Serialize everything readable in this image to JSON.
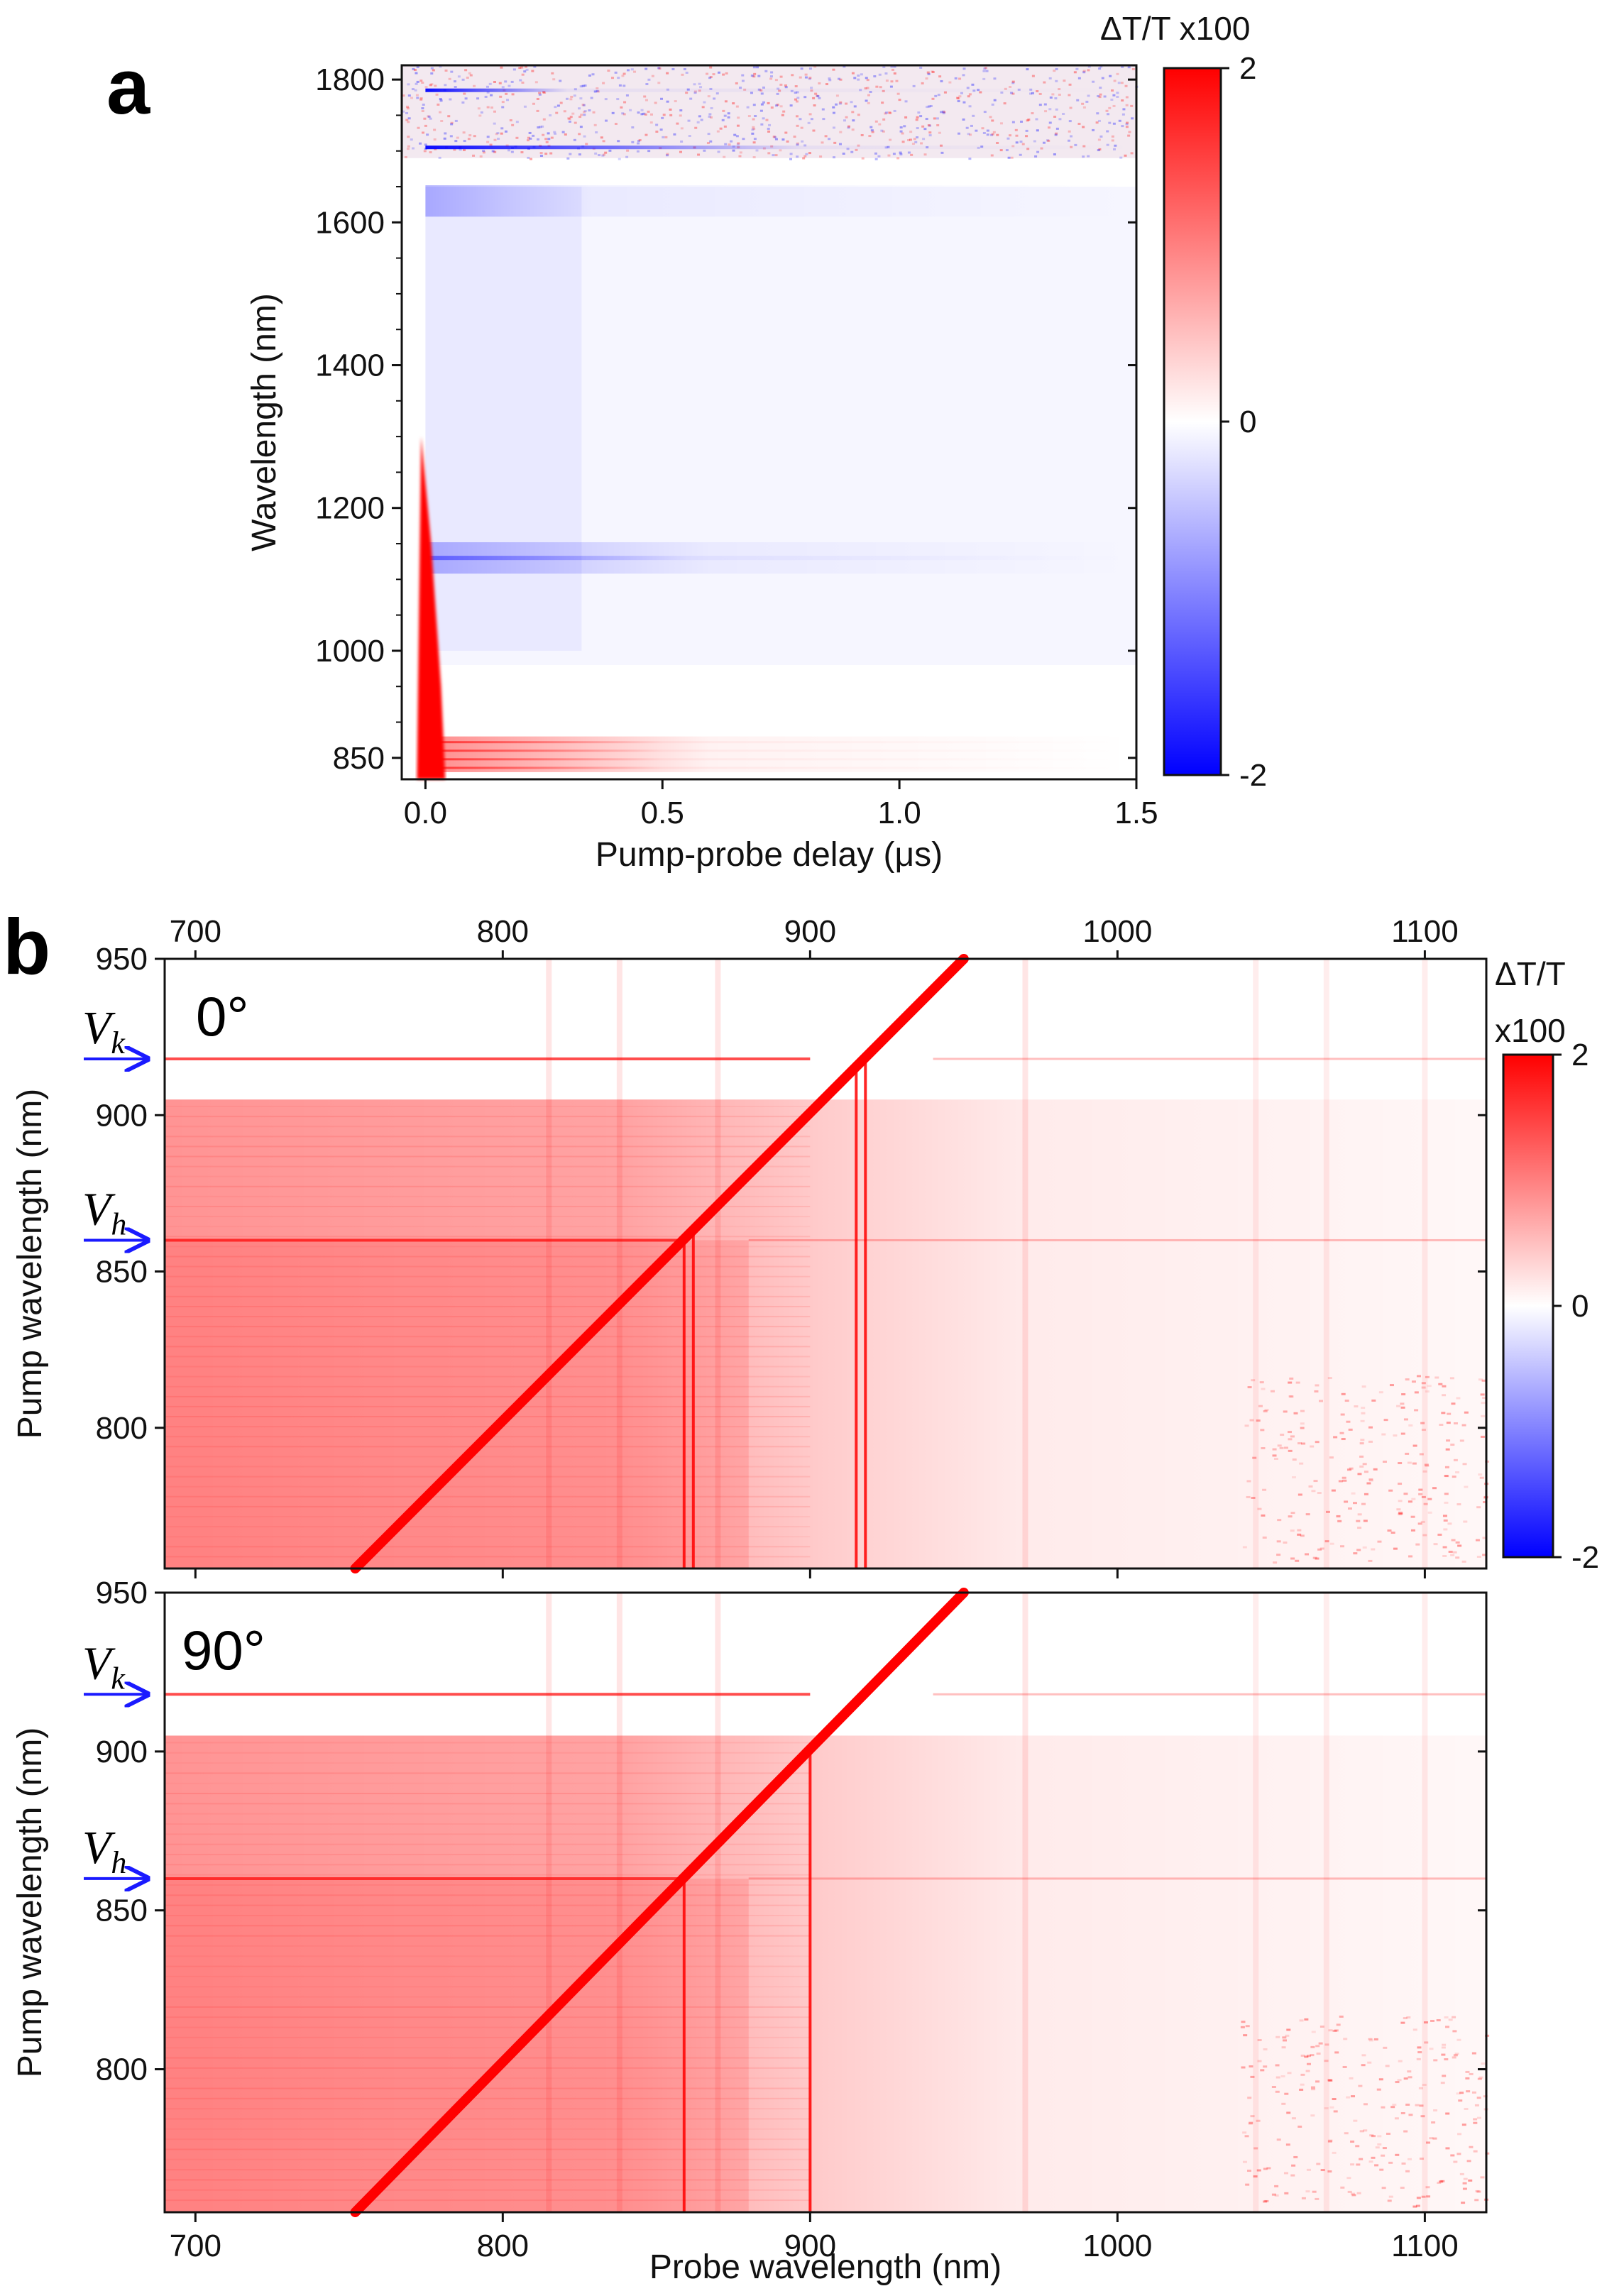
{
  "colors": {
    "positive": "#ff0000",
    "negative": "#0000ff",
    "zero": "#ffffff",
    "arrow": "#1a1aff",
    "axis": "#111111"
  },
  "chart_data": [
    {
      "panel": "a",
      "type": "heatmap",
      "xlabel": "Pump-probe delay (μs)",
      "ylabel": "Wavelength (nm)",
      "xlim": [
        -0.05,
        1.5
      ],
      "ylim": [
        820,
        1820
      ],
      "xticks": [
        0.0,
        0.5,
        1.0,
        1.5
      ],
      "xtick_labels": [
        "0.0",
        "0.5",
        "1.0",
        "1.5"
      ],
      "yticks": [
        850,
        1000,
        1200,
        1400,
        1600,
        1800
      ],
      "ytick_labels": [
        "850",
        "1000",
        "1200",
        "1400",
        "1600",
        "1800"
      ],
      "colorbar": {
        "title": "ΔT/T x100",
        "min": -2,
        "max": 2,
        "tick_labels": [
          "2",
          "0",
          "-2"
        ]
      },
      "features": [
        {
          "kind": "negative_line",
          "wavelength_nm": 1785,
          "decay_us": 0.3
        },
        {
          "kind": "negative_line",
          "wavelength_nm": 1705,
          "decay_us": 0.8
        },
        {
          "kind": "noise_band",
          "from_nm": 1690,
          "to_nm": 1820
        },
        {
          "kind": "negative_band",
          "wavelength_nm": 1630,
          "decay_us": 0.35
        },
        {
          "kind": "negative_band",
          "wavelength_nm": 1130,
          "decay_us": 0.6
        },
        {
          "kind": "positive_edge",
          "from_nm": 820,
          "to_nm": 1300
        },
        {
          "kind": "positive_band",
          "from_nm": 830,
          "to_nm": 880,
          "decay_us": 0.6
        }
      ]
    },
    {
      "panel": "b",
      "type": "heatmap",
      "label": "0°",
      "xlabel": "",
      "ylabel": "Pump wavelength (nm)",
      "xlim": [
        690,
        1120
      ],
      "ylim": [
        755,
        950
      ],
      "xticks": [
        700,
        800,
        900,
        1000,
        1100
      ],
      "xtick_labels": [
        "700",
        "800",
        "900",
        "1000",
        "1100"
      ],
      "yticks": [
        800,
        850,
        900,
        950
      ],
      "ytick_labels": [
        "800",
        "850",
        "900",
        "950"
      ],
      "colorbar": {
        "title_line1": "ΔT/T",
        "title_line2": "x100",
        "min": -2,
        "max": 2,
        "tick_labels": [
          "2",
          "0",
          "-2"
        ]
      },
      "diagonal": {
        "from": [
          752,
          755
        ],
        "to": [
          950,
          950
        ]
      },
      "markers": [
        {
          "name": "Vk",
          "letter": "V",
          "sub": "k",
          "pump_nm": 918
        },
        {
          "name": "Vh",
          "letter": "V",
          "sub": "h",
          "pump_nm": 860
        }
      ],
      "vertical_lines_nm": [
        859,
        862,
        915,
        918
      ],
      "bright_horizontal_nm": [
        918,
        860
      ]
    },
    {
      "panel": "b",
      "type": "heatmap",
      "label": "90°",
      "xlabel": "Probe wavelength (nm)",
      "ylabel": "Pump wavelength (nm)",
      "xlim": [
        690,
        1120
      ],
      "ylim": [
        755,
        950
      ],
      "xticks": [
        700,
        800,
        900,
        1000,
        1100
      ],
      "xtick_labels": [
        "700",
        "800",
        "900",
        "1000",
        "1100"
      ],
      "yticks": [
        800,
        850,
        900,
        950
      ],
      "ytick_labels": [
        "800",
        "850",
        "900",
        "950"
      ],
      "diagonal": {
        "from": [
          752,
          755
        ],
        "to": [
          950,
          950
        ]
      },
      "markers": [
        {
          "name": "Vk",
          "letter": "V",
          "sub": "k",
          "pump_nm": 918
        },
        {
          "name": "Vh",
          "letter": "V",
          "sub": "h",
          "pump_nm": 860
        }
      ],
      "vertical_lines_nm": [
        859,
        900
      ],
      "bright_horizontal_nm": [
        918,
        860
      ]
    }
  ],
  "labels": {
    "panel_a": "a",
    "panel_b": "b"
  }
}
